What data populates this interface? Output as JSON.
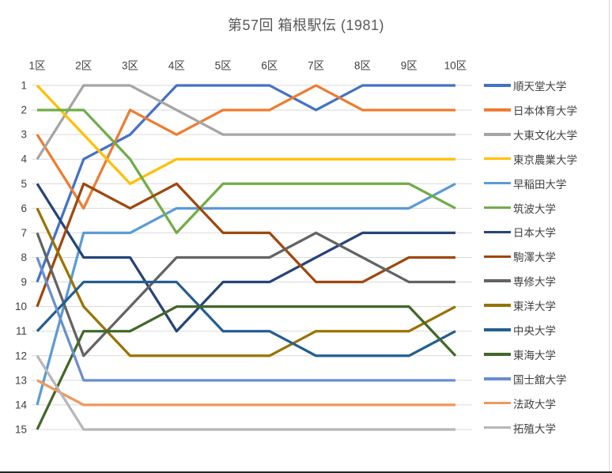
{
  "title": "第57回 箱根駅伝 (1981)",
  "chart_data": {
    "type": "line",
    "subtype": "bump-rank-chart",
    "title": "第57回 箱根駅伝 (1981)",
    "categories": [
      "1区",
      "2区",
      "3区",
      "4区",
      "5区",
      "6区",
      "7区",
      "8区",
      "9区",
      "10区"
    ],
    "x_axis_position": "top",
    "y_ticks": [
      "1",
      "2",
      "3",
      "4",
      "5",
      "6",
      "7",
      "8",
      "9",
      "10",
      "11",
      "12",
      "13",
      "14",
      "15"
    ],
    "y_range": [
      1,
      15
    ],
    "y_inverted": true,
    "grid": true,
    "grid_color": "#d9d9d9",
    "legend_position": "right",
    "series": [
      {
        "name": "順天堂大学",
        "color": "#4472C4",
        "ranks": [
          9,
          4,
          3,
          1,
          1,
          1,
          2,
          1,
          1,
          1
        ]
      },
      {
        "name": "日本体育大学",
        "color": "#ED7D31",
        "ranks": [
          3,
          6,
          2,
          3,
          2,
          2,
          1,
          2,
          2,
          2
        ]
      },
      {
        "name": "大東文化大学",
        "color": "#A5A5A5",
        "ranks": [
          4,
          1,
          1,
          2,
          3,
          3,
          3,
          3,
          3,
          3
        ]
      },
      {
        "name": "東京農業大学",
        "color": "#FFC000",
        "ranks": [
          1,
          3,
          5,
          4,
          4,
          4,
          4,
          4,
          4,
          4
        ]
      },
      {
        "name": "早稲田大学",
        "color": "#5B9BD5",
        "ranks": [
          14,
          7,
          7,
          6,
          6,
          6,
          6,
          6,
          6,
          5
        ]
      },
      {
        "name": "筑波大学",
        "color": "#70AD47",
        "ranks": [
          2,
          2,
          4,
          7,
          5,
          5,
          5,
          5,
          5,
          6
        ]
      },
      {
        "name": "日本大学",
        "color": "#264478",
        "ranks": [
          5,
          8,
          8,
          11,
          9,
          9,
          8,
          7,
          7,
          7
        ]
      },
      {
        "name": "駒澤大学",
        "color": "#9E480E",
        "ranks": [
          10,
          5,
          6,
          5,
          7,
          7,
          9,
          9,
          8,
          8
        ]
      },
      {
        "name": "専修大学",
        "color": "#636363",
        "ranks": [
          7,
          12,
          10,
          8,
          8,
          8,
          7,
          8,
          9,
          9
        ]
      },
      {
        "name": "東洋大学",
        "color": "#997300",
        "ranks": [
          6,
          10,
          12,
          12,
          12,
          12,
          11,
          11,
          11,
          10
        ]
      },
      {
        "name": "中央大学",
        "color": "#255E91",
        "ranks": [
          11,
          9,
          9,
          9,
          11,
          11,
          12,
          12,
          12,
          11
        ]
      },
      {
        "name": "東海大学",
        "color": "#43682B",
        "ranks": [
          15,
          11,
          11,
          10,
          10,
          10,
          10,
          10,
          10,
          12
        ]
      },
      {
        "name": "国士舘大学",
        "color": "#698ED0",
        "ranks": [
          8,
          13,
          13,
          13,
          13,
          13,
          13,
          13,
          13,
          13
        ]
      },
      {
        "name": "法政大学",
        "color": "#F1975A",
        "ranks": [
          13,
          14,
          14,
          14,
          14,
          14,
          14,
          14,
          14,
          14
        ]
      },
      {
        "name": "拓殖大学",
        "color": "#B7B7B7",
        "ranks": [
          12,
          15,
          15,
          15,
          15,
          15,
          15,
          15,
          15,
          15
        ]
      }
    ]
  }
}
